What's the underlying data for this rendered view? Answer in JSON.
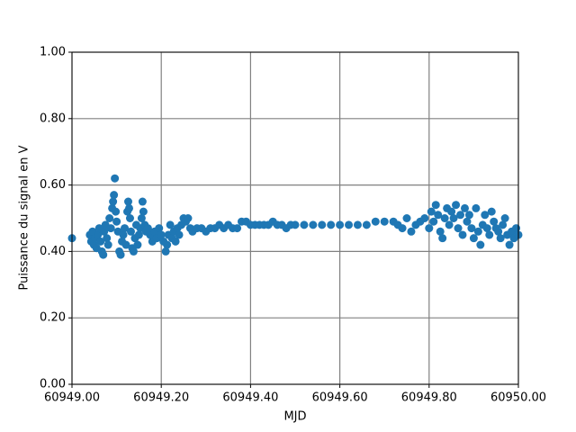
{
  "chart_data": {
    "type": "scatter",
    "xlabel": "MJD",
    "ylabel": "Puissance du signal en V",
    "xlim": [
      60949,
      60950
    ],
    "ylim": [
      0,
      1
    ],
    "xticks": [
      {
        "value": 60949,
        "label": "60949.00"
      },
      {
        "value": 60949.2,
        "label": "60949.20"
      },
      {
        "value": 60949.4,
        "label": "60949.40"
      },
      {
        "value": 60949.6,
        "label": "60949.60"
      },
      {
        "value": 60949.8,
        "label": "60949.80"
      },
      {
        "value": 60950,
        "label": "60950.00"
      }
    ],
    "yticks": [
      {
        "value": 0,
        "label": "0.00"
      },
      {
        "value": 0.2,
        "label": "0.20"
      },
      {
        "value": 0.4,
        "label": "0.40"
      },
      {
        "value": 0.6,
        "label": "0.60"
      },
      {
        "value": 0.8,
        "label": "0.80"
      },
      {
        "value": 1,
        "label": "1.00"
      }
    ],
    "grid": true,
    "color": "#1f77b4",
    "x": [
      60949.0,
      60949.04,
      60949.043,
      60949.046,
      60949.049,
      60949.052,
      60949.055,
      60949.058,
      60949.061,
      60949.064,
      60949.067,
      60949.07,
      60949.072,
      60949.075,
      60949.078,
      60949.081,
      60949.084,
      60949.087,
      60949.09,
      60949.092,
      60949.094,
      60949.096,
      60949.098,
      60949.1,
      60949.103,
      60949.106,
      60949.109,
      60949.112,
      60949.115,
      60949.118,
      60949.121,
      60949.124,
      60949.126,
      60949.128,
      60949.13,
      60949.132,
      60949.135,
      60949.138,
      60949.141,
      60949.144,
      60949.147,
      60949.15,
      60949.153,
      60949.156,
      60949.158,
      60949.16,
      60949.163,
      60949.166,
      60949.17,
      60949.175,
      60949.18,
      60949.185,
      60949.19,
      60949.195,
      60949.2,
      60949.205,
      60949.21,
      60949.213,
      60949.216,
      60949.22,
      60949.224,
      60949.228,
      60949.232,
      60949.236,
      60949.24,
      60949.245,
      60949.25,
      60949.255,
      60949.26,
      60949.265,
      60949.27,
      60949.28,
      60949.29,
      60949.3,
      60949.31,
      60949.32,
      60949.33,
      60949.34,
      60949.35,
      60949.36,
      60949.37,
      60949.38,
      60949.39,
      60949.4,
      60949.41,
      60949.42,
      60949.43,
      60949.44,
      60949.45,
      60949.46,
      60949.47,
      60949.48,
      60949.49,
      60949.5,
      60949.52,
      60949.54,
      60949.56,
      60949.58,
      60949.6,
      60949.62,
      60949.64,
      60949.66,
      60949.68,
      60949.7,
      60949.72,
      60949.73,
      60949.74,
      60949.75,
      60949.76,
      60949.77,
      60949.78,
      60949.79,
      60949.8,
      60949.805,
      60949.81,
      60949.815,
      60949.82,
      60949.825,
      60949.83,
      60949.835,
      60949.84,
      60949.845,
      60949.85,
      60949.855,
      60949.86,
      60949.865,
      60949.87,
      60949.875,
      60949.88,
      60949.885,
      60949.89,
      60949.895,
      60949.9,
      60949.905,
      60949.91,
      60949.915,
      60949.92,
      60949.925,
      60949.93,
      60949.935,
      60949.94,
      60949.945,
      60949.95,
      60949.955,
      60949.96,
      60949.965,
      60949.97,
      60949.975,
      60949.98,
      60949.985,
      60949.99,
      60949.995,
      60950.0
    ],
    "values": [
      0.44,
      0.45,
      0.43,
      0.46,
      0.42,
      0.44,
      0.41,
      0.45,
      0.47,
      0.43,
      0.4,
      0.39,
      0.46,
      0.48,
      0.44,
      0.42,
      0.5,
      0.47,
      0.53,
      0.55,
      0.57,
      0.62,
      0.52,
      0.49,
      0.46,
      0.4,
      0.39,
      0.43,
      0.45,
      0.47,
      0.42,
      0.52,
      0.55,
      0.53,
      0.5,
      0.46,
      0.41,
      0.4,
      0.44,
      0.48,
      0.42,
      0.45,
      0.47,
      0.5,
      0.55,
      0.52,
      0.48,
      0.46,
      0.47,
      0.45,
      0.43,
      0.46,
      0.44,
      0.47,
      0.45,
      0.43,
      0.4,
      0.42,
      0.45,
      0.48,
      0.44,
      0.46,
      0.43,
      0.47,
      0.45,
      0.48,
      0.5,
      0.49,
      0.5,
      0.47,
      0.46,
      0.47,
      0.47,
      0.46,
      0.47,
      0.47,
      0.48,
      0.47,
      0.48,
      0.47,
      0.47,
      0.49,
      0.49,
      0.48,
      0.48,
      0.48,
      0.48,
      0.48,
      0.49,
      0.48,
      0.48,
      0.47,
      0.48,
      0.48,
      0.48,
      0.48,
      0.48,
      0.48,
      0.48,
      0.48,
      0.48,
      0.48,
      0.49,
      0.49,
      0.49,
      0.48,
      0.47,
      0.5,
      0.46,
      0.48,
      0.49,
      0.5,
      0.47,
      0.52,
      0.49,
      0.54,
      0.51,
      0.46,
      0.44,
      0.5,
      0.53,
      0.48,
      0.52,
      0.5,
      0.54,
      0.47,
      0.51,
      0.45,
      0.53,
      0.49,
      0.51,
      0.47,
      0.44,
      0.53,
      0.46,
      0.42,
      0.48,
      0.51,
      0.47,
      0.45,
      0.52,
      0.49,
      0.47,
      0.46,
      0.44,
      0.48,
      0.5,
      0.45,
      0.42,
      0.46,
      0.44,
      0.47,
      0.45
    ]
  }
}
